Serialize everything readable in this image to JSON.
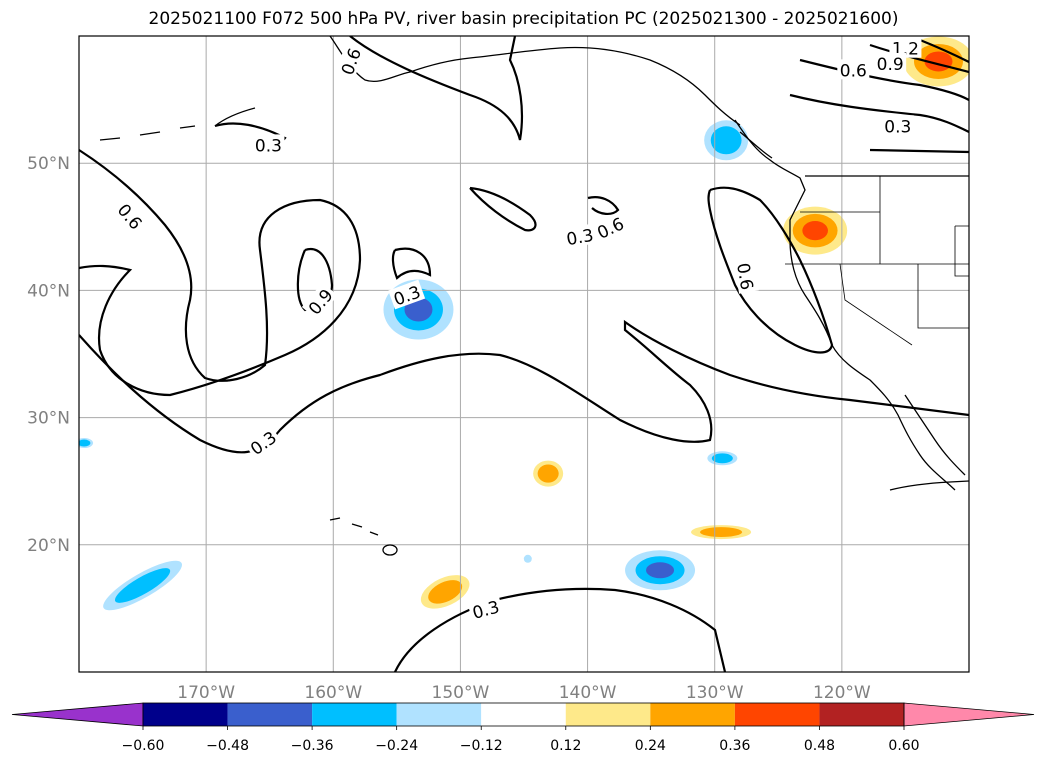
{
  "title": "2025021100 F072 500 hPa PV, river basin precipitation PC (2025021300 - 2025021600)",
  "map": {
    "lon_range": [
      -180,
      -110
    ],
    "lat_range": [
      10,
      60
    ],
    "lat_labels": [
      {
        "lat": 50,
        "text": "50°N"
      },
      {
        "lat": 40,
        "text": "40°N"
      },
      {
        "lat": 30,
        "text": "30°N"
      },
      {
        "lat": 20,
        "text": "20°N"
      }
    ],
    "lon_labels": [
      {
        "lon": -170,
        "text": "170°W"
      },
      {
        "lon": -160,
        "text": "160°W"
      },
      {
        "lon": -150,
        "text": "150°W"
      },
      {
        "lon": -140,
        "text": "140°W"
      },
      {
        "lon": -130,
        "text": "130°W"
      },
      {
        "lon": -120,
        "text": "120°W"
      }
    ],
    "gridline_color": "#aaaaaa"
  },
  "contour_labels": [
    {
      "text": "0.6",
      "lon": -158.6,
      "lat": 58.0,
      "rot": -70
    },
    {
      "text": "0.3",
      "lon": -165.1,
      "lat": 51.4,
      "rot": 0
    },
    {
      "text": "0.6",
      "lon": -176.0,
      "lat": 45.8,
      "rot": 50
    },
    {
      "text": "0.9",
      "lon": -161.0,
      "lat": 39.1,
      "rot": -50
    },
    {
      "text": "0.3",
      "lon": -154.2,
      "lat": 39.6,
      "rot": -20
    },
    {
      "text": "0.3",
      "lon": -140.6,
      "lat": 44.2,
      "rot": -10
    },
    {
      "text": "0.6",
      "lon": -138.2,
      "lat": 44.9,
      "rot": -25
    },
    {
      "text": "0.6",
      "lon": -127.6,
      "lat": 41.1,
      "rot": 80
    },
    {
      "text": "0.3",
      "lon": -165.5,
      "lat": 28.0,
      "rot": -35
    },
    {
      "text": "0.3",
      "lon": -148.0,
      "lat": 14.9,
      "rot": -15
    },
    {
      "text": "1.2",
      "lon": -115.0,
      "lat": 59.0,
      "rot": 0
    },
    {
      "text": "0.9",
      "lon": -116.2,
      "lat": 57.8,
      "rot": 0
    },
    {
      "text": "0.6",
      "lon": -119.1,
      "lat": 57.3,
      "rot": 0
    },
    {
      "text": "0.3",
      "lon": -115.6,
      "lat": 52.9,
      "rot": 0
    }
  ],
  "colorbar": {
    "tick_labels": [
      "−0.60",
      "−0.48",
      "−0.36",
      "−0.24",
      "−0.12",
      "0.12",
      "0.24",
      "0.36",
      "0.48",
      "0.60"
    ],
    "colors": [
      "#9932cc",
      "#00008b",
      "#3a5fcd",
      "#00bfff",
      "#b0e2ff",
      "#ffffff",
      "#fee98a",
      "#ffa500",
      "#ff4500",
      "#b22222",
      "#ff88aa"
    ]
  },
  "colors": {
    "neg_dark": "#3a5fcd",
    "neg_mid": "#00bfff",
    "neg_light": "#b0e2ff",
    "pos_light": "#fee98a",
    "pos_mid": "#ffa500",
    "pos_dark": "#ff4500"
  }
}
